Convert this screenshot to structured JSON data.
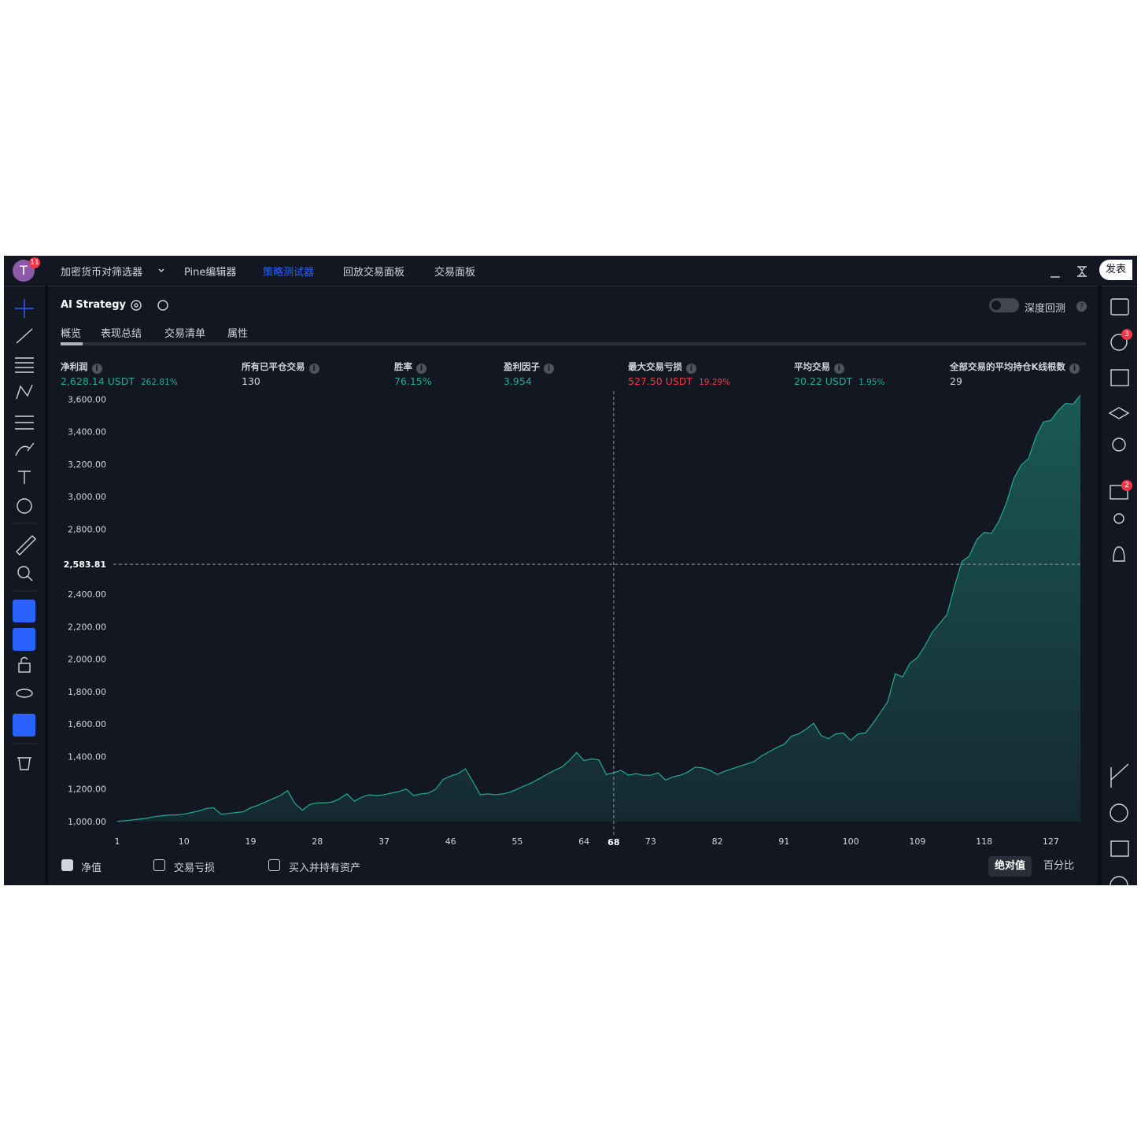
{
  "topbar": {
    "avatar": "T",
    "avatar_badge": "11",
    "nav": [
      "加密货币对筛选器",
      "Pine编辑器",
      "策略测试器",
      "回放交易面板",
      "交易面板"
    ],
    "active_nav": 2,
    "publish": "发表"
  },
  "header": {
    "strategy": "AI Strategy",
    "deep_backtest": "深度回测"
  },
  "tabs": [
    "概览",
    "表现总结",
    "交易清单",
    "属性"
  ],
  "metrics": [
    {
      "label": "净利润",
      "value": "2,628.14 USDT",
      "sub": "262.81%",
      "color": "#22ab94"
    },
    {
      "label": "所有已平仓交易",
      "value": "130",
      "color": "#d1d4dc"
    },
    {
      "label": "胜率",
      "value": "76.15%",
      "color": "#22ab94"
    },
    {
      "label": "盈利因子",
      "value": "3.954",
      "color": "#22ab94"
    },
    {
      "label": "最大交易亏损",
      "value": "527.50 USDT",
      "sub": "19.29%",
      "color": "#f23645"
    },
    {
      "label": "平均交易",
      "value": "20.22 USDT",
      "sub": "1.95%",
      "color": "#22ab94"
    },
    {
      "label": "全部交易的平均持仓K线根数",
      "value": "29",
      "color": "#d1d4dc"
    }
  ],
  "right_badges": [
    "3",
    "2"
  ],
  "legend": [
    {
      "label": "净值",
      "checked": true
    },
    {
      "label": "交易亏损",
      "checked": false
    },
    {
      "label": "买入并持有资产",
      "checked": false
    }
  ],
  "modes": [
    "绝对值",
    "百分比"
  ],
  "active_mode": 0,
  "chart_data": {
    "type": "area",
    "color": "#22ab94",
    "x": [
      1,
      2,
      3,
      4,
      5,
      6,
      7,
      8,
      9,
      10,
      11,
      12,
      13,
      14,
      15,
      16,
      17,
      18,
      19,
      20,
      21,
      22,
      23,
      24,
      25,
      26,
      27,
      28,
      29,
      30,
      31,
      32,
      33,
      34,
      35,
      36,
      37,
      38,
      39,
      40,
      41,
      42,
      43,
      44,
      45,
      46,
      47,
      48,
      49,
      50,
      51,
      52,
      53,
      54,
      55,
      56,
      57,
      58,
      59,
      60,
      61,
      62,
      63,
      64,
      65,
      66,
      67,
      68,
      69,
      70,
      71,
      72,
      73,
      74,
      75,
      76,
      77,
      78,
      79,
      80,
      81,
      82,
      83,
      84,
      85,
      86,
      87,
      88,
      89,
      90,
      91,
      92,
      93,
      94,
      95,
      96,
      97,
      98,
      99,
      100,
      101,
      102,
      103,
      104,
      105,
      106,
      107,
      108,
      109,
      110,
      111,
      112,
      113,
      114,
      115,
      116,
      117,
      118,
      119,
      120,
      121,
      122,
      123,
      124,
      125,
      126,
      127,
      128,
      129,
      130,
      131
    ],
    "series": [
      {
        "name": "净值",
        "color": "#22ab94",
        "values": [
          1000,
          1005,
          1010,
          1015,
          1020,
          1030,
          1035,
          1040,
          1040,
          1045,
          1055,
          1065,
          1080,
          1085,
          1045,
          1050,
          1055,
          1060,
          1085,
          1100,
          1120,
          1140,
          1160,
          1190,
          1110,
          1070,
          1105,
          1115,
          1115,
          1120,
          1140,
          1170,
          1125,
          1150,
          1165,
          1160,
          1165,
          1175,
          1185,
          1200,
          1160,
          1170,
          1175,
          1200,
          1260,
          1280,
          1295,
          1325,
          1245,
          1165,
          1170,
          1165,
          1170,
          1180,
          1200,
          1220,
          1240,
          1265,
          1290,
          1315,
          1335,
          1375,
          1425,
          1375,
          1385,
          1380,
          1290,
          1300,
          1315,
          1285,
          1295,
          1285,
          1285,
          1300,
          1255,
          1275,
          1285,
          1305,
          1335,
          1330,
          1315,
          1290,
          1310,
          1325,
          1340,
          1355,
          1370,
          1405,
          1430,
          1455,
          1475,
          1525,
          1540,
          1570,
          1605,
          1530,
          1510,
          1540,
          1545,
          1500,
          1540,
          1545,
          1605,
          1670,
          1740,
          1910,
          1890,
          1975,
          2010,
          2080,
          2165,
          2220,
          2275,
          2445,
          2600,
          2635,
          2735,
          2780,
          2775,
          2850,
          2960,
          3110,
          3195,
          3235,
          3370,
          3460,
          3470,
          3530,
          3575,
          3570,
          3625
        ]
      }
    ],
    "xlim": [
      1,
      131
    ],
    "xticks": [
      1,
      10,
      19,
      28,
      37,
      46,
      55,
      64,
      73,
      82,
      91,
      100,
      109,
      118,
      127
    ],
    "ylim": [
      1000,
      3660
    ],
    "yticks": [
      {
        "value": 1000,
        "label": "1,000.00"
      },
      {
        "value": 1200,
        "label": "1,200.00"
      },
      {
        "value": 1400,
        "label": "1,400.00"
      },
      {
        "value": 1600,
        "label": "1,600.00"
      },
      {
        "value": 1800,
        "label": "1,800.00"
      },
      {
        "value": 2000,
        "label": "2,000.00"
      },
      {
        "value": 2200,
        "label": "2,200.00"
      },
      {
        "value": 2400,
        "label": "2,400.00"
      },
      {
        "value": 2800,
        "label": "2,800.00"
      },
      {
        "value": 3000,
        "label": "3,000.00"
      },
      {
        "value": 3200,
        "label": "3,200.00"
      },
      {
        "value": 3400,
        "label": "3,400.00"
      },
      {
        "value": 3600,
        "label": "3,600.00"
      }
    ],
    "grid": false,
    "crosshair": {
      "x": 68,
      "y": {
        "value": 2583.81,
        "label": "2,583.81"
      }
    }
  }
}
